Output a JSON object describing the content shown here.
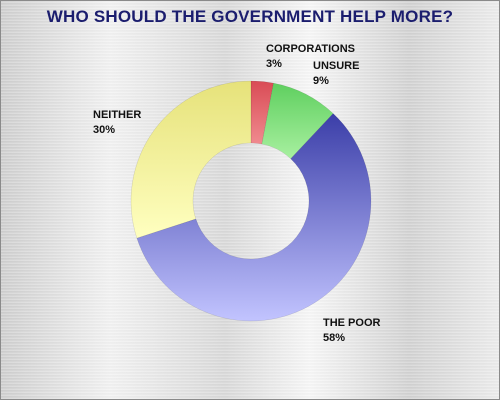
{
  "chart_data": {
    "type": "pie",
    "title": "WHO SHOULD THE GOVERNMENT HELP MORE?",
    "categories": [
      "CORPORATIONS",
      "UNSURE",
      "THE POOR",
      "NEITHER"
    ],
    "values": [
      3,
      9,
      58,
      30
    ],
    "value_labels": [
      "3%",
      "9%",
      "58%",
      "30%"
    ],
    "colors": [
      "#d94b55",
      "#5fcf5f",
      "#3b3ea8",
      "#e6e27a"
    ],
    "colors_light": [
      "#f08a8f",
      "#a8f0a0",
      "#c2c4ff",
      "#ffffc0"
    ],
    "donut": true,
    "legend": "none"
  }
}
